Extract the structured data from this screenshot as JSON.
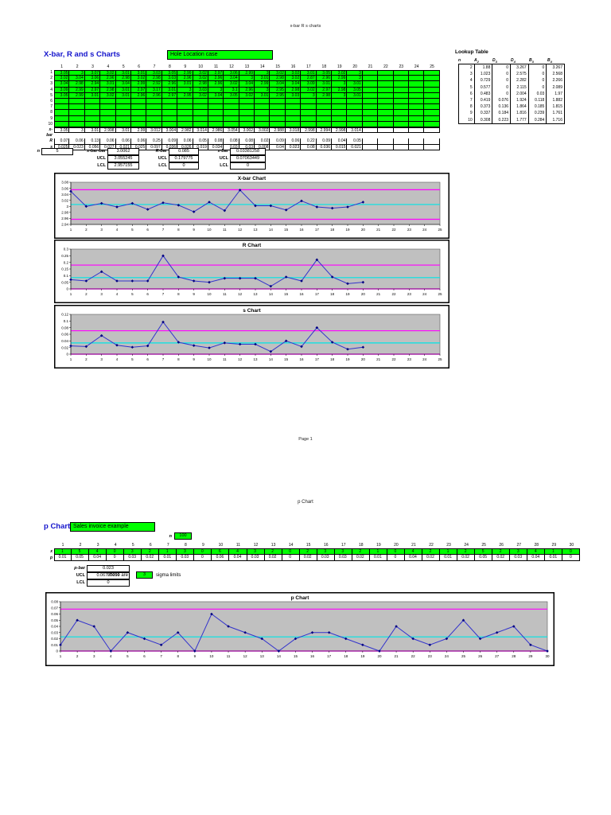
{
  "page": {
    "header": "x-bar R s charts",
    "footer": "Page 1",
    "page2_header": "p Chart"
  },
  "colors": {
    "cell_green": "#00ff00",
    "title_blue": "#1414cc",
    "ucl_magenta": "#ff00ff",
    "center_cyan": "#00e5e5",
    "series_blue": "#3333cc",
    "marker_navy": "#000080",
    "plot_gray": "#c0c0c0"
  },
  "xbar_section": {
    "title": "X-bar, R and s Charts",
    "case_label": "Hole Location case",
    "col_headers": [
      "1",
      "2",
      "3",
      "4",
      "5",
      "6",
      "7",
      "8",
      "9",
      "10",
      "11",
      "12",
      "13",
      "14",
      "15",
      "16",
      "17",
      "18",
      "19",
      "20",
      "21",
      "22",
      "23",
      "24",
      "25"
    ],
    "row_headers": [
      "1",
      "2",
      "3",
      "4",
      "5",
      "6",
      "7",
      "8",
      "9",
      "10"
    ],
    "data_rows": [
      [
        "3.05",
        "3",
        "3.07",
        "3.02",
        "3.01",
        "3.01",
        "3.03",
        "3.05",
        "2.99",
        "3.02",
        "2.97",
        "3.06",
        "2.99",
        "3",
        "3.02",
        "3.02",
        "3.01",
        "3.05",
        "3.02",
        "3"
      ],
      [
        "3.02",
        "3.04",
        "3.06",
        "2.96",
        "2.98",
        "3.02",
        "2.98",
        "3.03",
        "2.96",
        "3.02",
        "2.96",
        "3.04",
        "3",
        "3.01",
        "2.98",
        "3.02",
        "2.87",
        "2.96",
        "2.99",
        "3"
      ],
      [
        "3.04",
        "2.98",
        "2.94",
        "3.01",
        "3.04",
        "2.99",
        "2.92",
        "2.96",
        "3.01",
        "2.98",
        "2.96",
        "3.02",
        "3.04",
        "2.99",
        "3.04",
        "3.04",
        "3.09",
        "3.01",
        "3",
        "3.01"
      ],
      [
        "3.09",
        "2.99",
        "2.97",
        "2.98",
        "3.01",
        "2.97",
        "3.17",
        "3.01",
        "3",
        "3.03",
        "3",
        "3.1",
        "2.96",
        "3",
        "2.95",
        "2.98",
        "3.02",
        "2.97",
        "2.98",
        "3.05"
      ],
      [
        "3.05",
        "2.99",
        "3.01",
        "3.02",
        "3.01",
        "2.96",
        "2.96",
        "2.97",
        "2.95",
        "3.02",
        "3.04",
        "3.05",
        "3.02",
        "3.01",
        "2.95",
        "3.03",
        "3",
        "2.98",
        "3",
        "3.01"
      ],
      [],
      [],
      [],
      [],
      []
    ],
    "stat_rows": [
      {
        "label": "x-bar",
        "values": [
          "3.05",
          "3",
          "3.01",
          "2.998",
          "3.01",
          "2.99",
          "3.012",
          "3.004",
          "2.982",
          "3.014",
          "2.986",
          "3.054",
          "3.002",
          "3.002",
          "2.988",
          "3.018",
          "2.998",
          "2.994",
          "2.998",
          "3.014"
        ]
      },
      {
        "label": "R",
        "values": [
          "0.07",
          "0.06",
          "0.13",
          "0.06",
          "0.06",
          "0.06",
          "0.25",
          "0.09",
          "0.06",
          "0.05",
          "0.08",
          "0.08",
          "0.08",
          "0.02",
          "0.09",
          "0.06",
          "0.22",
          "0.09",
          "0.04",
          "0.05"
        ]
      },
      {
        "label": "s",
        "values": [
          "0.025",
          "0.023",
          "0.056",
          "0.027",
          "0.021",
          "0.025",
          "0.097",
          "0.036",
          "0.026",
          "0.019",
          "0.034",
          "0.03",
          "0.03",
          "0.008",
          "0.04",
          "0.023",
          "0.08",
          "0.036",
          "0.015",
          "0.021"
        ]
      }
    ],
    "summary": {
      "n_label": "n",
      "n_value": "5",
      "groups": [
        {
          "name_label": "x-bar-bar",
          "value": "3.0062",
          "ucl_label": "UCL",
          "ucl": "3.055245",
          "lcl_label": "LCL",
          "lcl": "2.957155"
        },
        {
          "name_label": "R-bar",
          "value": "0.085",
          "ucl_label": "UCL",
          "ucl": "0.179775",
          "lcl_label": "LCL",
          "lcl": "0"
        },
        {
          "name_label": "s-bar",
          "value": "0.03381258",
          "ucl_label": "UCL",
          "ucl": "0.07063449",
          "lcl_label": "LCL",
          "lcl": "0"
        }
      ]
    }
  },
  "lookup_table": {
    "title": "Lookup Table",
    "headers": [
      "n",
      "A2",
      "D3",
      "D4",
      "B3",
      "B4"
    ],
    "rows": [
      [
        "2",
        "1.88",
        "0",
        "3.267",
        "0",
        "3.267"
      ],
      [
        "3",
        "1.023",
        "0",
        "2.575",
        "0",
        "2.568"
      ],
      [
        "4",
        "0.729",
        "0",
        "2.282",
        "0",
        "2.266"
      ],
      [
        "5",
        "0.577",
        "0",
        "2.115",
        "0",
        "2.089"
      ],
      [
        "6",
        "0.483",
        "0",
        "2.004",
        "0.03",
        "1.97"
      ],
      [
        "7",
        "0.419",
        "0.076",
        "1.924",
        "0.118",
        "1.882"
      ],
      [
        "8",
        "0.373",
        "0.136",
        "1.864",
        "0.185",
        "1.815"
      ],
      [
        "9",
        "0.337",
        "0.184",
        "1.816",
        "0.239",
        "1.761"
      ],
      [
        "10",
        "0.308",
        "0.223",
        "1.777",
        "0.284",
        "1.716"
      ]
    ]
  },
  "p_section": {
    "title": "p Chart",
    "case_label": "Sales invoice example",
    "n_label": "n",
    "n_value": "100",
    "col_headers": [
      "1",
      "2",
      "3",
      "4",
      "5",
      "6",
      "7",
      "8",
      "9",
      "10",
      "11",
      "12",
      "13",
      "14",
      "15",
      "16",
      "17",
      "18",
      "19",
      "20",
      "21",
      "22",
      "23",
      "24",
      "25",
      "26",
      "27",
      "28",
      "29",
      "30"
    ],
    "x_row_label": "x",
    "x_values": [
      "1",
      "5",
      "4",
      "0",
      "3",
      "2",
      "1",
      "3",
      "0",
      "6",
      "4",
      "3",
      "2",
      "0",
      "2",
      "3",
      "3",
      "2",
      "1",
      "0",
      "4",
      "2",
      "1",
      "2",
      "5",
      "2",
      "3",
      "4",
      "1",
      "0"
    ],
    "p_row_label": "p",
    "p_values": [
      "0.01",
      "0.05",
      "0.04",
      "0",
      "0.03",
      "0.02",
      "0.01",
      "0.03",
      "0",
      "0.06",
      "0.04",
      "0.03",
      "0.02",
      "0",
      "0.02",
      "0.03",
      "0.03",
      "0.02",
      "0.01",
      "0",
      "0.04",
      "0.02",
      "0.01",
      "0.02",
      "0.05",
      "0.02",
      "0.03",
      "0.04",
      "0.01",
      "0"
    ],
    "summary": {
      "pbar_label": "p-bar",
      "pbar": "0.023",
      "ucl_label": "UCL",
      "ucl": "0.06797099",
      "lcl_label": "LCL",
      "lcl": "0",
      "sigma_before": "These are",
      "sigma_value": "3",
      "sigma_after": "sigma limits"
    }
  },
  "chart_data": [
    {
      "type": "line",
      "name": "xbar-chart",
      "title": "X-bar Chart",
      "values": [
        3.05,
        3,
        3.01,
        2.998,
        3.01,
        2.99,
        3.012,
        3.004,
        2.982,
        3.014,
        2.986,
        3.054,
        3.002,
        3.002,
        2.988,
        3.018,
        2.998,
        2.994,
        2.998,
        3.014
      ],
      "ucl": 3.055245,
      "center": 3.0062,
      "lcl": 2.957155,
      "ylim": [
        2.94,
        3.08
      ],
      "ytick_values": [
        2.94,
        2.96,
        2.98,
        3,
        3.02,
        3.04,
        3.06,
        3.08
      ],
      "ytick_labels": [
        "2.94",
        "2.96",
        "2.98",
        "3",
        "3.02",
        "3.04",
        "3.06",
        "3.08"
      ],
      "xtick_count": 25,
      "grid": false,
      "legend": "none"
    },
    {
      "type": "line",
      "name": "r-chart",
      "title": "R Chart",
      "values": [
        0.07,
        0.06,
        0.13,
        0.06,
        0.06,
        0.06,
        0.25,
        0.09,
        0.06,
        0.05,
        0.08,
        0.08,
        0.08,
        0.02,
        0.09,
        0.06,
        0.22,
        0.09,
        0.04,
        0.05
      ],
      "ucl": 0.179775,
      "center": 0.085,
      "lcl": 0,
      "ylim": [
        0,
        0.3
      ],
      "ytick_values": [
        0,
        0.05,
        0.1,
        0.15,
        0.2,
        0.25,
        0.3
      ],
      "ytick_labels": [
        "0",
        "0.05",
        "0.1",
        "0.15",
        "0.2",
        "0.25",
        "0.3"
      ],
      "xtick_count": 25,
      "grid": false,
      "legend": "none"
    },
    {
      "type": "line",
      "name": "s-chart",
      "title": "s Chart",
      "values": [
        0.025,
        0.023,
        0.056,
        0.027,
        0.021,
        0.025,
        0.097,
        0.036,
        0.026,
        0.019,
        0.034,
        0.03,
        0.03,
        0.008,
        0.04,
        0.023,
        0.08,
        0.036,
        0.015,
        0.021
      ],
      "ucl": 0.07063449,
      "center": 0.03381258,
      "lcl": 0,
      "ylim": [
        0,
        0.12
      ],
      "ytick_values": [
        0,
        0.02,
        0.04,
        0.06,
        0.08,
        0.1,
        0.12
      ],
      "ytick_labels": [
        "0",
        "0.02",
        "0.04",
        "0.06",
        "0.08",
        "0.1",
        "0.12"
      ],
      "xtick_count": 25,
      "grid": false,
      "legend": "none"
    },
    {
      "type": "line",
      "name": "p-chart",
      "title": "p Chart",
      "values": [
        0.01,
        0.05,
        0.04,
        0,
        0.03,
        0.02,
        0.01,
        0.03,
        0,
        0.06,
        0.04,
        0.03,
        0.02,
        0,
        0.02,
        0.03,
        0.03,
        0.02,
        0.01,
        0,
        0.04,
        0.02,
        0.01,
        0.02,
        0.05,
        0.02,
        0.03,
        0.04,
        0.01,
        0
      ],
      "ucl": 0.06797099,
      "center": 0.023,
      "lcl": 0,
      "ylim": [
        0,
        0.08
      ],
      "ytick_values": [
        0,
        0.01,
        0.02,
        0.03,
        0.04,
        0.05,
        0.06,
        0.07,
        0.08
      ],
      "ytick_labels": [
        "0",
        "0.01",
        "0.02",
        "0.03",
        "0.04",
        "0.05",
        "0.06",
        "0.07",
        "0.08"
      ],
      "xtick_count": 30,
      "grid": false,
      "legend": "none"
    }
  ]
}
